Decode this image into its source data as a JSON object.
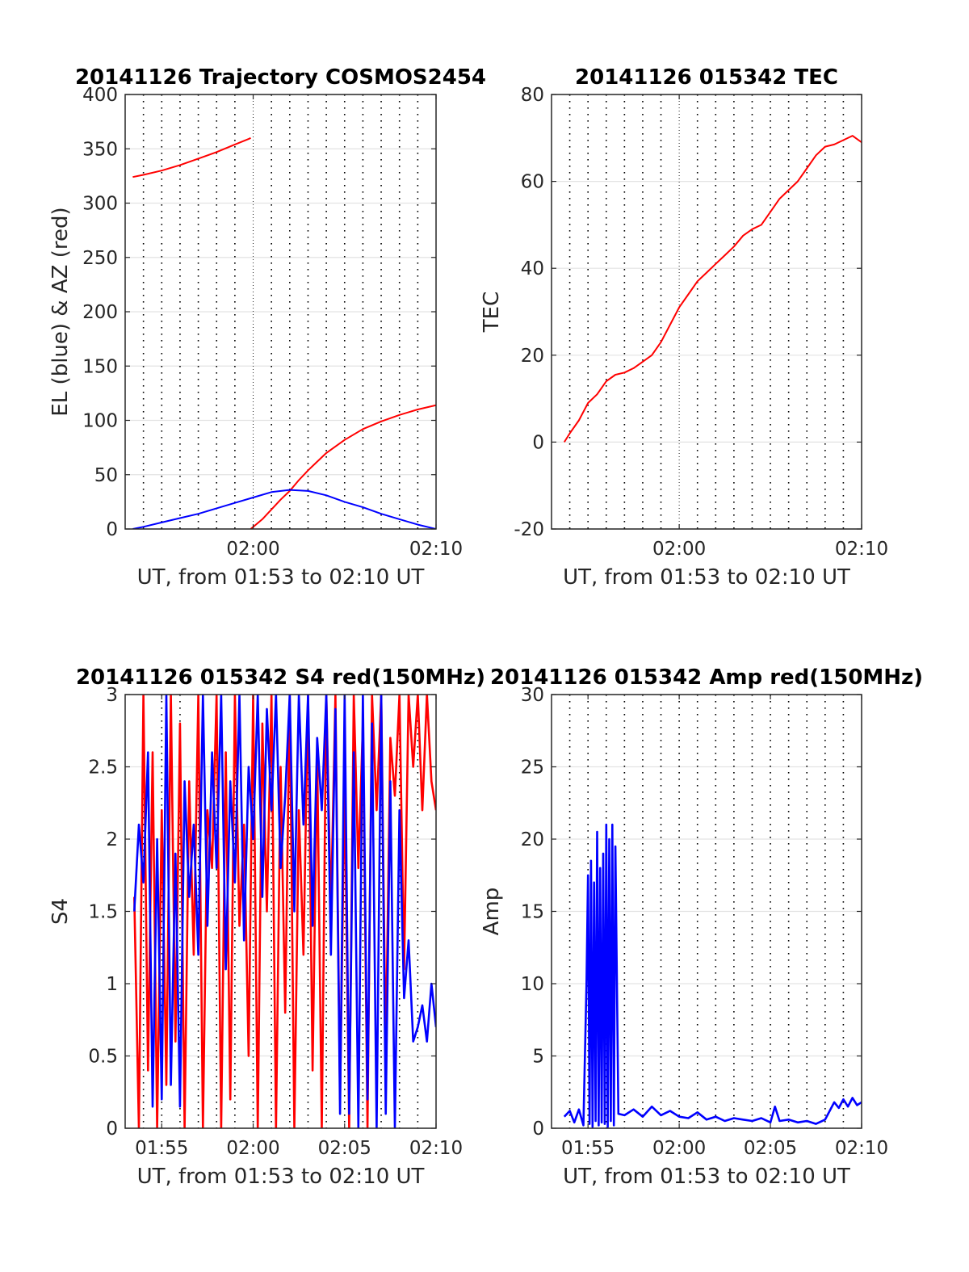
{
  "chart_data": [
    {
      "id": "trajectory",
      "type": "line",
      "title": "20141126 Trajectory COSMOS2454",
      "xlabel": "UT, from 01:53 to 02:10 UT",
      "ylabel": "EL (blue) & AZ (red)",
      "xlim": [
        "01:53:00",
        "02:10:00"
      ],
      "ylim": [
        0,
        400
      ],
      "yticks": [
        "0",
        "50",
        "100",
        "150",
        "200",
        "250",
        "300",
        "350",
        "400"
      ],
      "xticks": [
        "02:00",
        "02:10"
      ],
      "grid": true,
      "series": [
        {
          "color": "#ff0000",
          "x": [
            "01:53:25",
            "01:54:00",
            "01:55:00",
            "01:56:00",
            "01:57:00",
            "01:58:00",
            "01:59:00",
            "01:59:45",
            "01:59:52"
          ],
          "y": [
            324,
            326,
            330,
            335,
            341,
            347,
            354,
            359,
            360
          ]
        },
        {
          "color": "#ff0000",
          "x": [
            "01:59:52",
            "02:00:30",
            "02:01:00",
            "02:01:30",
            "02:02:00",
            "02:02:30",
            "02:03:00",
            "02:04:00",
            "02:05:00",
            "02:06:00",
            "02:07:00",
            "02:08:00",
            "02:09:00",
            "02:10:00"
          ],
          "y": [
            0,
            9,
            18,
            27,
            35,
            45,
            54,
            70,
            82,
            92,
            99,
            105,
            110,
            114
          ]
        },
        {
          "color": "#0000ff",
          "x": [
            "01:53:25",
            "01:54:00",
            "01:55:00",
            "01:56:00",
            "01:57:00",
            "01:58:00",
            "01:59:00",
            "02:00:00",
            "02:01:00",
            "02:02:00",
            "02:03:00",
            "02:04:00",
            "02:05:00",
            "02:06:00",
            "02:07:00",
            "02:08:00",
            "02:09:00",
            "02:10:00"
          ],
          "y": [
            0,
            2,
            6,
            10,
            14,
            19,
            24,
            29,
            34,
            36,
            35,
            31,
            25,
            20,
            14,
            9,
            4,
            0
          ]
        }
      ]
    },
    {
      "id": "tec",
      "type": "line",
      "title": "20141126 015342 TEC",
      "xlabel": "UT, from 01:53 to 02:10 UT",
      "ylabel": "TEC",
      "xlim": [
        "01:53:00",
        "02:10:00"
      ],
      "ylim": [
        -20,
        80
      ],
      "yticks": [
        "-20",
        "0",
        "20",
        "40",
        "60",
        "80"
      ],
      "xticks": [
        "02:00",
        "02:10"
      ],
      "grid": true,
      "series": [
        {
          "color": "#ff0000",
          "x": [
            "01:53:42",
            "01:54:00",
            "01:54:30",
            "01:55:00",
            "01:55:30",
            "01:56:00",
            "01:56:30",
            "01:57:00",
            "01:57:30",
            "01:58:00",
            "01:58:30",
            "01:59:00",
            "01:59:30",
            "02:00:00",
            "02:00:30",
            "02:01:00",
            "02:01:30",
            "02:02:00",
            "02:02:30",
            "02:03:00",
            "02:03:30",
            "02:04:00",
            "02:04:30",
            "02:05:00",
            "02:05:30",
            "02:06:00",
            "02:06:30",
            "02:07:00",
            "02:07:30",
            "02:08:00",
            "02:08:30",
            "02:09:00",
            "02:09:30",
            "02:10:00"
          ],
          "y": [
            0,
            2,
            5,
            9,
            11,
            14,
            15.5,
            16,
            17,
            18.5,
            20,
            23,
            27,
            31,
            34,
            37,
            39,
            41,
            43,
            45,
            47.5,
            49,
            50,
            53,
            56,
            58,
            60,
            63,
            66,
            68,
            68.5,
            69.5,
            70.5,
            69
          ]
        }
      ]
    },
    {
      "id": "s4",
      "type": "line",
      "title": "20141126 015342 S4 red(150MHz)",
      "xlabel": "UT, from 01:53 to 02:10 UT",
      "ylabel": "S4",
      "xlim": [
        "01:53:00",
        "02:10:00"
      ],
      "ylim": [
        0,
        3
      ],
      "yticks": [
        "0",
        "0.5",
        "1",
        "1.5",
        "2",
        "2.5",
        "3"
      ],
      "xticks": [
        "01:55",
        "02:00",
        "02:05",
        "02:10"
      ],
      "grid": true,
      "series": [
        {
          "color": "#ff0000",
          "x": [
            "01:53:30",
            "01:53:45",
            "01:54:00",
            "01:54:15",
            "01:54:30",
            "01:54:45",
            "01:55:00",
            "01:55:15",
            "01:55:30",
            "01:55:45",
            "01:56:00",
            "01:56:15",
            "01:56:30",
            "01:56:45",
            "01:57:00",
            "01:57:15",
            "01:57:30",
            "01:57:45",
            "01:58:00",
            "01:58:15",
            "01:58:30",
            "01:58:45",
            "01:59:00",
            "01:59:15",
            "01:59:30",
            "01:59:45",
            "02:00:00",
            "02:00:15",
            "02:00:30",
            "02:00:45",
            "02:01:00",
            "02:01:15",
            "02:01:30",
            "02:01:45",
            "02:02:00",
            "02:02:15",
            "02:02:30",
            "02:02:45",
            "02:03:00",
            "02:03:15",
            "02:03:30",
            "02:03:45",
            "02:04:00",
            "02:04:15",
            "02:04:30",
            "02:04:45",
            "02:05:00",
            "02:05:15",
            "02:05:30",
            "02:05:45",
            "02:06:00",
            "02:06:15",
            "02:06:30",
            "02:06:45",
            "02:07:00",
            "02:07:15",
            "02:07:30",
            "02:07:45",
            "02:08:00",
            "02:08:15",
            "02:08:30",
            "02:08:45",
            "02:09:00",
            "02:09:15",
            "02:09:30",
            "02:09:45",
            "02:10:00"
          ],
          "y": [
            1.6,
            0,
            3,
            0.4,
            2.6,
            0,
            2.2,
            0.3,
            3,
            0.6,
            2.8,
            0,
            2.4,
            1.2,
            3,
            0,
            2.2,
            1.8,
            3,
            0,
            2.6,
            0.2,
            3,
            1.4,
            2.1,
            0.5,
            3,
            0,
            2.8,
            1.5,
            3,
            0,
            2.5,
            0.8,
            3,
            0,
            2.2,
            1.2,
            3,
            0.4,
            2.6,
            0,
            3,
            1.5,
            3,
            0.2,
            2.4,
            0,
            3,
            1.8,
            2.8,
            0,
            3,
            2.2,
            3,
            0.5,
            2.7,
            2.3,
            3,
            1.1,
            3,
            2.5,
            3,
            2.2,
            3,
            2.4,
            2.2
          ]
        },
        {
          "color": "#0000ff",
          "x": [
            "01:53:30",
            "01:53:45",
            "01:54:00",
            "01:54:15",
            "01:54:30",
            "01:54:45",
            "01:55:00",
            "01:55:15",
            "01:55:30",
            "01:55:45",
            "01:56:00",
            "01:56:15",
            "01:56:30",
            "01:56:45",
            "01:57:00",
            "01:57:15",
            "01:57:30",
            "01:57:45",
            "01:58:00",
            "01:58:15",
            "01:58:30",
            "01:58:45",
            "01:59:00",
            "01:59:15",
            "01:59:30",
            "01:59:45",
            "02:00:00",
            "02:00:15",
            "02:00:30",
            "02:00:45",
            "02:01:00",
            "02:01:15",
            "02:01:30",
            "02:01:45",
            "02:02:00",
            "02:02:15",
            "02:02:30",
            "02:02:45",
            "02:03:00",
            "02:03:15",
            "02:03:30",
            "02:03:45",
            "02:04:00",
            "02:04:15",
            "02:04:30",
            "02:04:45",
            "02:05:00",
            "02:05:15",
            "02:05:30",
            "02:05:45",
            "02:06:00",
            "02:06:15",
            "02:06:30",
            "02:06:45",
            "02:07:00",
            "02:07:15",
            "02:07:30",
            "02:07:45",
            "02:08:00",
            "02:08:15",
            "02:08:30",
            "02:08:45",
            "02:09:00",
            "02:09:15",
            "02:09:30",
            "02:09:45",
            "02:10:00"
          ],
          "y": [
            1.5,
            2.1,
            1.7,
            2.6,
            0.15,
            2.0,
            0.2,
            3.0,
            0.3,
            1.9,
            0.15,
            2.4,
            1.6,
            2.1,
            1.2,
            3.0,
            1.4,
            2.6,
            1.8,
            3.0,
            1.1,
            2.4,
            1.7,
            3.0,
            1.3,
            2.5,
            2.0,
            3.0,
            1.6,
            2.9,
            2.2,
            3.0,
            1.8,
            2.3,
            3.0,
            1.5,
            3.0,
            2.1,
            3.0,
            1.4,
            2.7,
            2.2,
            3.0,
            1.2,
            2.9,
            0.1,
            3.0,
            0.1,
            2.6,
            0,
            3.0,
            0.2,
            2.8,
            0,
            3.0,
            0.1,
            2.4,
            0,
            2.2,
            0.9,
            1.3,
            0.6,
            0.7,
            0.85,
            0.6,
            1.0,
            0.7
          ]
        }
      ]
    },
    {
      "id": "amp",
      "type": "line",
      "title": "20141126 015342 Amp red(150MHz)",
      "xlabel": "UT, from 01:53 to 02:10 UT",
      "ylabel": "Amp",
      "xlim": [
        "01:53:00",
        "02:10:00"
      ],
      "ylim": [
        0,
        30
      ],
      "yticks": [
        "0",
        "5",
        "10",
        "15",
        "20",
        "25",
        "30"
      ],
      "xticks": [
        "01:55",
        "02:00",
        "02:05",
        "02:10"
      ],
      "grid": true,
      "series": [
        {
          "color": "#0000ff",
          "x": [
            "01:53:42",
            "01:54:00",
            "01:54:15",
            "01:54:30",
            "01:54:45",
            "01:54:55",
            "01:55:00",
            "01:55:05",
            "01:55:10",
            "01:55:15",
            "01:55:20",
            "01:55:25",
            "01:55:30",
            "01:55:35",
            "01:55:40",
            "01:55:45",
            "01:55:50",
            "01:55:55",
            "01:56:00",
            "01:56:05",
            "01:56:10",
            "01:56:15",
            "01:56:20",
            "01:56:25",
            "01:56:30",
            "01:56:40",
            "01:57:00",
            "01:57:30",
            "01:58:00",
            "01:58:30",
            "01:59:00",
            "01:59:30",
            "02:00:00",
            "02:00:30",
            "02:01:00",
            "02:01:30",
            "02:02:00",
            "02:02:30",
            "02:03:00",
            "02:03:30",
            "02:04:00",
            "02:04:30",
            "02:05:00",
            "02:05:15",
            "02:05:30",
            "02:06:00",
            "02:06:30",
            "02:07:00",
            "02:07:30",
            "02:08:00",
            "02:08:15",
            "02:08:30",
            "02:08:45",
            "02:09:00",
            "02:09:15",
            "02:09:30",
            "02:09:45",
            "02:10:00"
          ],
          "y": [
            0.8,
            1.2,
            0.4,
            1.3,
            0.2,
            10,
            17.5,
            0.3,
            18.5,
            0.1,
            17,
            0.5,
            20.5,
            0.2,
            18,
            0.4,
            19,
            0.3,
            21,
            0.1,
            20,
            0.5,
            21,
            0.2,
            19.5,
            1.0,
            0.9,
            1.3,
            0.8,
            1.5,
            0.9,
            1.2,
            0.8,
            0.7,
            1.1,
            0.6,
            0.8,
            0.5,
            0.7,
            0.6,
            0.5,
            0.7,
            0.4,
            1.5,
            0.5,
            0.6,
            0.4,
            0.5,
            0.3,
            0.6,
            1.2,
            1.8,
            1.4,
            2.0,
            1.5,
            2.1,
            1.6,
            1.8
          ]
        }
      ]
    }
  ]
}
